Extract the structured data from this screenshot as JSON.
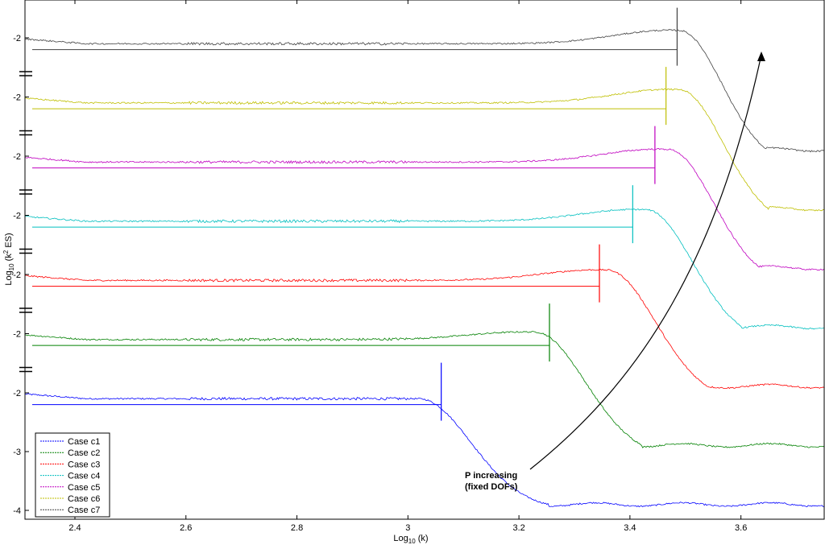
{
  "chart_data": {
    "type": "line",
    "title": "",
    "xlabel": {
      "base": "Log",
      "sub": "10",
      "rest": " (k)"
    },
    "ylabel": {
      "base": "Log",
      "sub": "10",
      "mid": " (k",
      "sup": "2",
      "rest": " ES)"
    },
    "xlim": [
      2.31,
      3.75
    ],
    "x_ticks": [
      "2.4",
      "2.6",
      "2.8",
      "3",
      "3.2",
      "3.4",
      "3.6"
    ],
    "y_tick_labels_bottom": [
      "-2",
      "-3",
      "-4"
    ],
    "y_tick_label_offset": "-2",
    "grid": false,
    "legend_position": "bottom-left",
    "series": [
      {
        "name": "Case c1",
        "color": "#0000ff",
        "cutoff_x": 3.06,
        "peak_x": 3.0,
        "peak_height": 0.0,
        "base_y": -2.02,
        "tail_y": -3.9,
        "decay_rate": 4.8
      },
      {
        "name": "Case c2",
        "color": "#008000",
        "cutoff_x": 3.255,
        "peak_x": 3.21,
        "peak_height": 0.13,
        "base_y": -2.02,
        "tail_y": -3.9,
        "decay_rate": 5.2
      },
      {
        "name": "Case c3",
        "color": "#ff0000",
        "cutoff_x": 3.345,
        "peak_x": 3.34,
        "peak_height": 0.18,
        "base_y": -2.02,
        "tail_y": -3.9,
        "decay_rate": 5.6
      },
      {
        "name": "Case c4",
        "color": "#00bfbf",
        "cutoff_x": 3.405,
        "peak_x": 3.41,
        "peak_height": 0.2,
        "base_y": -2.02,
        "tail_y": -3.9,
        "decay_rate": 6.0
      },
      {
        "name": "Case c5",
        "color": "#bf00bf",
        "cutoff_x": 3.445,
        "peak_x": 3.45,
        "peak_height": 0.22,
        "base_y": -2.02,
        "tail_y": -3.9,
        "decay_rate": 6.4
      },
      {
        "name": "Case c6",
        "color": "#bfbf00",
        "cutoff_x": 3.465,
        "peak_x": 3.47,
        "peak_height": 0.23,
        "base_y": -2.02,
        "tail_y": -3.9,
        "decay_rate": 6.8
      },
      {
        "name": "Case c7",
        "color": "#404040",
        "cutoff_x": 3.485,
        "peak_x": 3.47,
        "peak_height": 0.23,
        "base_y": -2.02,
        "tail_y": -3.9,
        "decay_rate": 7.2
      }
    ],
    "annotation": {
      "lines": [
        "P increasing",
        "(fixed DOFs)"
      ]
    }
  }
}
